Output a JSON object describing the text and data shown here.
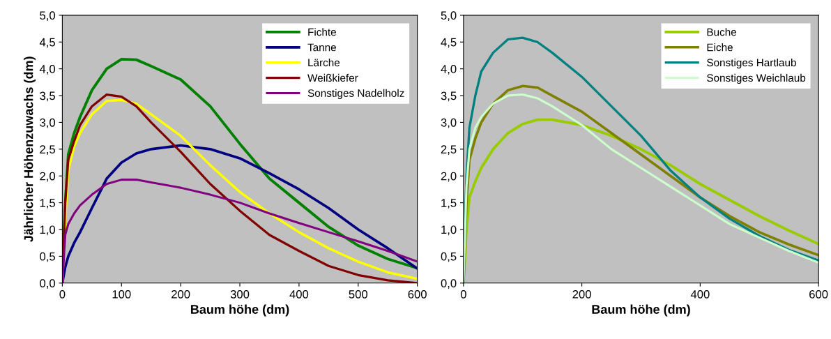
{
  "chart_data": [
    {
      "type": "line",
      "xlabel": "Baum höhe (dm)",
      "ylabel": "Jährlicher Höhenzuwachs (dm)",
      "legend": "top right",
      "grid": false,
      "marker": "none",
      "line_style": "solid",
      "x": [
        0,
        5,
        10,
        20,
        30,
        50,
        75,
        100,
        125,
        150,
        200,
        250,
        300,
        350,
        400,
        450,
        500,
        550,
        600
      ],
      "xlim": [
        0,
        600
      ],
      "xticks": [
        0,
        100,
        200,
        300,
        400,
        500,
        600
      ],
      "ylim": [
        0,
        5
      ],
      "yticks": [
        {
          "value": 0,
          "label": "0,0"
        },
        {
          "value": 0.5,
          "label": "0,5"
        },
        {
          "value": 1,
          "label": "1,0"
        },
        {
          "value": 1.5,
          "label": "1,5"
        },
        {
          "value": 2,
          "label": "2,0"
        },
        {
          "value": 2.5,
          "label": "2,5"
        },
        {
          "value": 3,
          "label": "3,0"
        },
        {
          "value": 3.5,
          "label": "3,5"
        },
        {
          "value": 4,
          "label": "4,0"
        },
        {
          "value": 4.5,
          "label": "4,5"
        },
        {
          "value": 5,
          "label": "5,0"
        }
      ],
      "series": [
        {
          "name": "Fichte",
          "color": "#008000",
          "values": [
            0,
            1.5,
            2.4,
            2.8,
            3.1,
            3.6,
            4.0,
            4.18,
            4.17,
            4.05,
            3.8,
            3.3,
            2.6,
            1.95,
            1.5,
            1.05,
            0.7,
            0.45,
            0.28
          ]
        },
        {
          "name": "Tanne",
          "color": "#000080",
          "values": [
            0,
            0.3,
            0.5,
            0.75,
            0.95,
            1.4,
            1.95,
            2.25,
            2.42,
            2.5,
            2.57,
            2.5,
            2.33,
            2.05,
            1.75,
            1.4,
            1.0,
            0.65,
            0.27
          ]
        },
        {
          "name": "Lärche",
          "color": "#ffff00",
          "values": [
            0,
            1.2,
            2.1,
            2.55,
            2.8,
            3.15,
            3.4,
            3.42,
            3.35,
            3.15,
            2.75,
            2.2,
            1.7,
            1.3,
            0.95,
            0.65,
            0.4,
            0.2,
            0.08
          ]
        },
        {
          "name": "Weißkiefer",
          "color": "#800000",
          "values": [
            0,
            1.5,
            2.3,
            2.65,
            2.95,
            3.3,
            3.52,
            3.48,
            3.3,
            3.0,
            2.45,
            1.85,
            1.35,
            0.9,
            0.6,
            0.32,
            0.15,
            0.05,
            0
          ]
        },
        {
          "name": "Sonstiges Nadelholz",
          "color": "#800080",
          "values": [
            0,
            0.9,
            1.1,
            1.3,
            1.45,
            1.65,
            1.85,
            1.93,
            1.93,
            1.88,
            1.78,
            1.65,
            1.5,
            1.3,
            1.12,
            0.95,
            0.78,
            0.6,
            0.4
          ]
        }
      ]
    },
    {
      "type": "line",
      "xlabel": "Baum höhe (dm)",
      "legend": "top right",
      "grid": false,
      "marker": "none",
      "line_style": "solid",
      "x": [
        0,
        5,
        10,
        20,
        30,
        50,
        75,
        100,
        125,
        150,
        200,
        250,
        300,
        350,
        400,
        450,
        500,
        550,
        600
      ],
      "xlim": [
        0,
        600
      ],
      "xticks": [
        0,
        200,
        400,
        600
      ],
      "ylim": [
        0,
        5
      ],
      "yticks": [
        {
          "value": 0,
          "label": "0,0"
        },
        {
          "value": 0.5,
          "label": "0,5"
        },
        {
          "value": 1,
          "label": "1,0"
        },
        {
          "value": 1.5,
          "label": "1,5"
        },
        {
          "value": 2,
          "label": "2,0"
        },
        {
          "value": 2.5,
          "label": "2,5"
        },
        {
          "value": 3,
          "label": "3,0"
        },
        {
          "value": 3.5,
          "label": "3,5"
        },
        {
          "value": 4,
          "label": "4,0"
        },
        {
          "value": 4.5,
          "label": "4,5"
        },
        {
          "value": 5,
          "label": "5,0"
        }
      ],
      "series": [
        {
          "name": "Buche",
          "color": "#99cc00",
          "values": [
            0,
            1.0,
            1.6,
            1.9,
            2.15,
            2.5,
            2.8,
            2.97,
            3.05,
            3.05,
            2.95,
            2.75,
            2.5,
            2.2,
            1.85,
            1.55,
            1.25,
            0.98,
            0.73
          ]
        },
        {
          "name": "Eiche",
          "color": "#808000",
          "values": [
            0,
            1.5,
            2.3,
            2.7,
            3.0,
            3.35,
            3.6,
            3.68,
            3.65,
            3.5,
            3.2,
            2.8,
            2.4,
            2.0,
            1.6,
            1.25,
            0.95,
            0.72,
            0.52
          ]
        },
        {
          "name": "Sonstiges Hartlaub",
          "color": "#008080",
          "values": [
            0,
            2.0,
            2.9,
            3.5,
            3.95,
            4.3,
            4.55,
            4.58,
            4.5,
            4.3,
            3.85,
            3.3,
            2.75,
            2.1,
            1.6,
            1.2,
            0.88,
            0.62,
            0.42
          ]
        },
        {
          "name": "Sonstiges Weichlaub",
          "color": "#ccffcc",
          "values": [
            0,
            1.8,
            2.5,
            2.9,
            3.1,
            3.35,
            3.5,
            3.52,
            3.45,
            3.3,
            2.95,
            2.5,
            2.15,
            1.8,
            1.45,
            1.1,
            0.85,
            0.6,
            0.38
          ]
        }
      ]
    }
  ]
}
